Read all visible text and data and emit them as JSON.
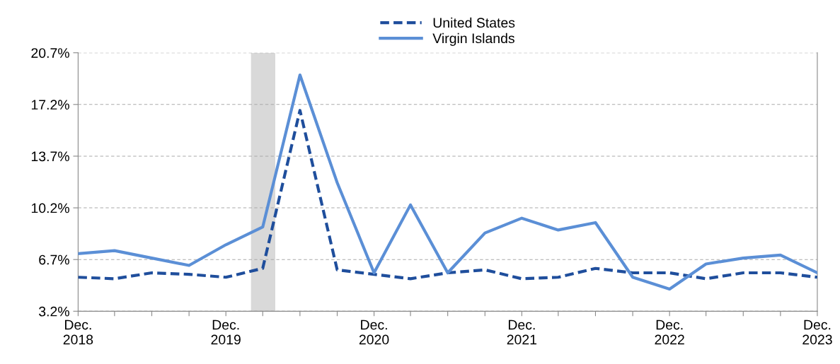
{
  "chart_data": {
    "type": "line",
    "x": [
      "2018-12",
      "2019-03",
      "2019-06",
      "2019-09",
      "2019-12",
      "2020-03",
      "2020-06",
      "2020-09",
      "2020-12",
      "2021-03",
      "2021-06",
      "2021-09",
      "2021-12",
      "2022-03",
      "2022-06",
      "2022-09",
      "2022-12",
      "2023-03",
      "2023-06",
      "2023-09",
      "2023-12"
    ],
    "series": [
      {
        "name": "United States",
        "color": "#1f4e9c",
        "line_style": "dashed",
        "values": [
          5.5,
          5.4,
          5.8,
          5.7,
          5.5,
          6.1,
          16.8,
          6.0,
          5.7,
          5.4,
          5.8,
          6.0,
          5.4,
          5.5,
          6.1,
          5.8,
          5.8,
          5.4,
          5.8,
          5.8,
          5.5
        ]
      },
      {
        "name": "Virgin Islands",
        "color": "#5b8fd6",
        "line_style": "solid",
        "values": [
          7.1,
          7.3,
          6.8,
          6.3,
          7.7,
          8.9,
          19.2,
          11.9,
          5.8,
          10.4,
          5.8,
          8.5,
          9.5,
          8.7,
          9.2,
          5.5,
          4.7,
          6.4,
          6.8,
          7.0,
          5.8
        ]
      }
    ],
    "ylim": [
      3.2,
      20.7
    ],
    "yticks": [
      {
        "value": 3.2,
        "label": "3.2%"
      },
      {
        "value": 6.7,
        "label": "6.7%"
      },
      {
        "value": 10.2,
        "label": "10.2%"
      },
      {
        "value": 13.7,
        "label": "13.7%"
      },
      {
        "value": 17.2,
        "label": "17.2%"
      },
      {
        "value": 20.7,
        "label": "20.7%"
      }
    ],
    "xlim": [
      "2018-12",
      "2023-12"
    ],
    "xticks": [
      {
        "value": "2018-12",
        "label": "Dec.\n2018"
      },
      {
        "value": "2019-03",
        "label": null
      },
      {
        "value": "2019-06",
        "label": null
      },
      {
        "value": "2019-09",
        "label": null
      },
      {
        "value": "2019-12",
        "label": "Dec.\n2019"
      },
      {
        "value": "2020-03",
        "label": null
      },
      {
        "value": "2020-06",
        "label": null
      },
      {
        "value": "2020-09",
        "label": null
      },
      {
        "value": "2020-12",
        "label": "Dec.\n2020"
      },
      {
        "value": "2021-03",
        "label": null
      },
      {
        "value": "2021-06",
        "label": null
      },
      {
        "value": "2021-09",
        "label": null
      },
      {
        "value": "2021-12",
        "label": "Dec.\n2021"
      },
      {
        "value": "2022-03",
        "label": null
      },
      {
        "value": "2022-06",
        "label": null
      },
      {
        "value": "2022-09",
        "label": null
      },
      {
        "value": "2022-12",
        "label": "Dec.\n2022"
      },
      {
        "value": "2023-03",
        "label": null
      },
      {
        "value": "2023-06",
        "label": null
      },
      {
        "value": "2023-09",
        "label": null
      },
      {
        "value": "2023-12",
        "label": "Dec.\n2023"
      }
    ],
    "bands": [
      {
        "axis": "x",
        "from": "2020-02",
        "to": "2020-04",
        "color": "#d9d9d9"
      }
    ],
    "grid": "y",
    "legend": "top",
    "marker": "none"
  }
}
